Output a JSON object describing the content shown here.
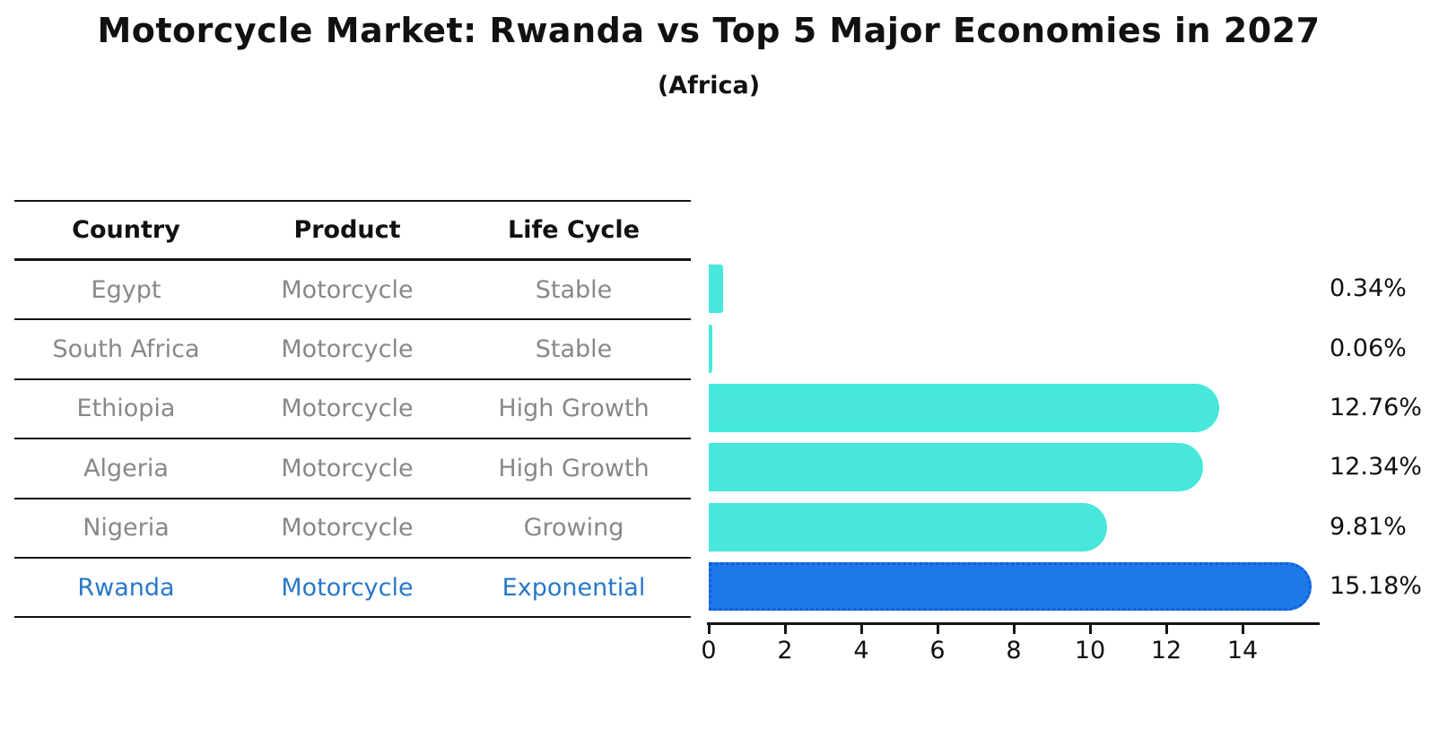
{
  "title": "Motorcycle Market: Rwanda vs Top 5 Major Economies in 2027",
  "subtitle": "(Africa)",
  "table": {
    "headers": [
      "Country",
      "Product",
      "Life Cycle"
    ],
    "rows": [
      {
        "country": "Egypt",
        "product": "Motorcycle",
        "life_cycle": "Stable",
        "highlighted": false
      },
      {
        "country": "South Africa",
        "product": "Motorcycle",
        "life_cycle": "Stable",
        "highlighted": false
      },
      {
        "country": "Ethiopia",
        "product": "Motorcycle",
        "life_cycle": "High Growth",
        "highlighted": false
      },
      {
        "country": "Algeria",
        "product": "Motorcycle",
        "life_cycle": "High Growth",
        "highlighted": false
      },
      {
        "country": "Nigeria",
        "product": "Motorcycle",
        "life_cycle": "Growing",
        "highlighted": false
      },
      {
        "country": "Rwanda",
        "product": "Motorcycle",
        "life_cycle": "Exponential",
        "highlighted": true
      }
    ]
  },
  "chart_data": {
    "type": "bar",
    "orientation": "horizontal",
    "title": "Motorcycle Market: Rwanda vs Top 5 Major Economies in 2027",
    "subtitle": "(Africa)",
    "categories": [
      "Egypt",
      "South Africa",
      "Ethiopia",
      "Algeria",
      "Nigeria",
      "Rwanda"
    ],
    "values": [
      0.34,
      0.06,
      12.76,
      12.34,
      9.81,
      15.18
    ],
    "value_labels": [
      "0.34%",
      "0.06%",
      "12.76%",
      "12.34%",
      "9.81%",
      "15.18%"
    ],
    "x_ticks": [
      0,
      2,
      4,
      6,
      8,
      10,
      12,
      14
    ],
    "xlim": [
      0,
      16
    ],
    "grid": false,
    "legend": false,
    "highlight_index": 5
  },
  "colors": {
    "bar": "#47E7DC",
    "highlight_bar": "#1E78E8",
    "highlight_border": "#0E5FD8",
    "highlight_text": "#2878C8",
    "row_text": "#888888",
    "header_text": "#111111",
    "axis": "#141414",
    "label_text": "#111111"
  }
}
